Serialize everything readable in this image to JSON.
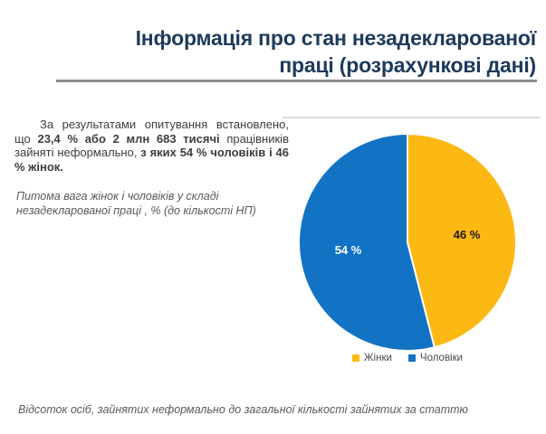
{
  "title": "Інформація про стан незадекларованої\nпраці (розрахункові дані)",
  "intro": {
    "seg1": "За результатами опитування встановлено, що ",
    "seg2": "23,4 % або 2 млн 683 тисячі ",
    "seg3": "працівників зайняті неформально, ",
    "seg4": "з яких 54 % чоловіків і 46 % жінок."
  },
  "chart_caption": "Питома вага  жінок і чоловіків у складі\nнезадекларованої праці , % (до кількості НП)",
  "footer_caption": "Відсоток осіб, зайнятих неформально до загальної кількості зайнятих за статтю",
  "colors": {
    "title_navy": "#1e3a5c",
    "rule_gray": "#8c8c8c",
    "women_yellow": "#FCB813",
    "men_blue": "#1273C4"
  },
  "chart_data": {
    "type": "pie",
    "title": "Питома вага жінок і чоловіків у складі незадекларованої праці, % (до кількості НП)",
    "start_angle_deg": 0,
    "direction": "clockwise",
    "legend_position": "bottom",
    "slices": [
      {
        "label": "Жінки",
        "value": 46,
        "color": "#FCB813",
        "data_label": "46 %",
        "label_color": "#1a1a1a"
      },
      {
        "label": "Чоловіки",
        "value": 54,
        "color": "#1273C4",
        "data_label": "54 %",
        "label_color": "#ffffff"
      }
    ]
  }
}
